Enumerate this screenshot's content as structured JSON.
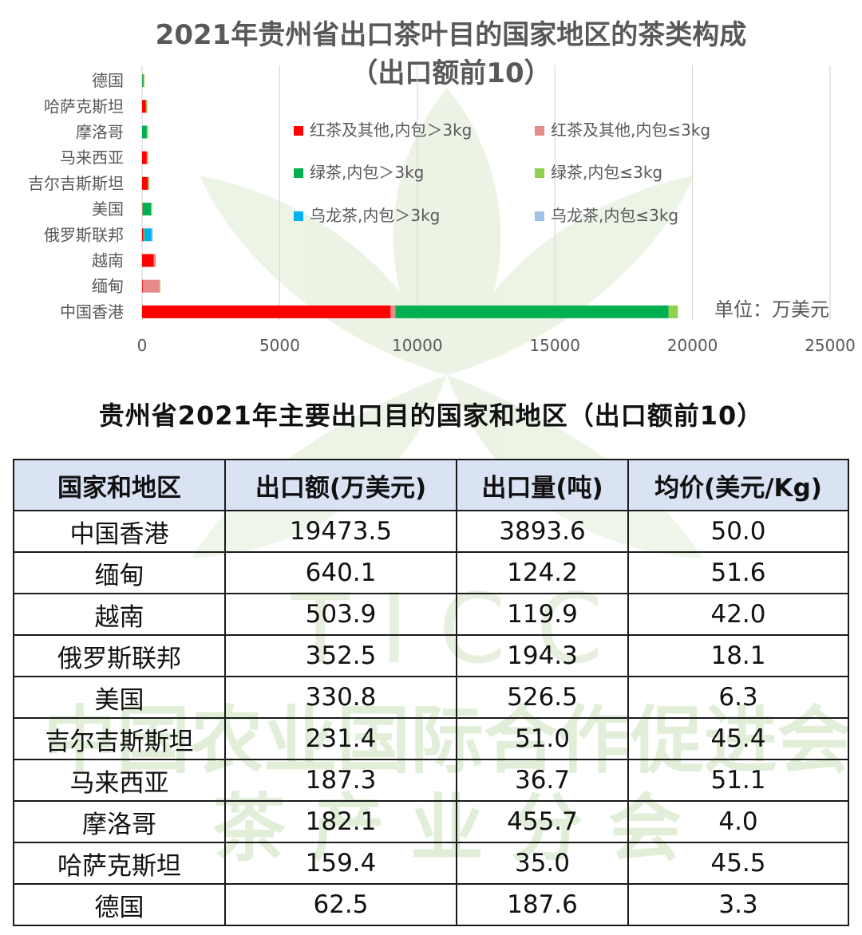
{
  "chart_data": {
    "type": "bar",
    "orientation": "horizontal",
    "stacked": true,
    "title": "2021年贵州省出口茶叶目的国家地区的茶类构成",
    "subtitle": "（出口额前10）",
    "unit_label": "单位：万美元",
    "categories": [
      "中国香港",
      "缅甸",
      "越南",
      "俄罗斯联邦",
      "美国",
      "吉尔吉斯斯坦",
      "马来西亚",
      "摩洛哥",
      "哈萨克斯坦",
      "德国"
    ],
    "x_ticks": [
      0,
      5000,
      10000,
      15000,
      20000,
      25000
    ],
    "xlim": [
      0,
      25000
    ],
    "grid": true,
    "legend_position": "top-right",
    "series": [
      {
        "name": "红茶及其他,内包＞3kg",
        "color": "#ff0000",
        "values": [
          9030,
          20,
          420,
          30,
          0,
          210,
          170,
          0,
          140,
          0
        ]
      },
      {
        "name": "红茶及其他,内包≤3kg",
        "color": "#e88a8a",
        "values": [
          180,
          600,
          80,
          5,
          20,
          15,
          10,
          0,
          10,
          5
        ]
      },
      {
        "name": "绿茶,内包＞3kg",
        "color": "#00b050",
        "values": [
          9920,
          0,
          0,
          40,
          300,
          0,
          0,
          170,
          0,
          40
        ]
      },
      {
        "name": "绿茶,内包≤3kg",
        "color": "#92d050",
        "values": [
          340,
          20,
          0,
          20,
          10,
          5,
          5,
          10,
          5,
          15
        ]
      },
      {
        "name": "乌龙茶,内包＞3kg",
        "color": "#00b0f0",
        "values": [
          0,
          0,
          0,
          250,
          0,
          0,
          0,
          0,
          0,
          0
        ]
      },
      {
        "name": "乌龙茶,内包≤3kg",
        "color": "#9dc3e6",
        "values": [
          0,
          0,
          0,
          5,
          0,
          0,
          0,
          0,
          0,
          0
        ]
      }
    ]
  },
  "table": {
    "title": "贵州省2021年主要出口目的国家和地区（出口额前10）",
    "headers": [
      "国家和地区",
      "出口额(万美元)",
      "出口量(吨)",
      "均价(美元/Kg)"
    ],
    "rows": [
      [
        "中国香港",
        "19473.5",
        "3893.6",
        "50.0"
      ],
      [
        "缅甸",
        "640.1",
        "124.2",
        "51.6"
      ],
      [
        "越南",
        "503.9",
        "119.9",
        "42.0"
      ],
      [
        "俄罗斯联邦",
        "352.5",
        "194.3",
        "18.1"
      ],
      [
        "美国",
        "330.8",
        "526.5",
        "6.3"
      ],
      [
        "吉尔吉斯斯坦",
        "231.4",
        "51.0",
        "45.4"
      ],
      [
        "马来西亚",
        "187.3",
        "36.7",
        "51.1"
      ],
      [
        "摩洛哥",
        "182.1",
        "455.7",
        "4.0"
      ],
      [
        "哈萨克斯坦",
        "159.4",
        "35.0",
        "45.5"
      ],
      [
        "德国",
        "62.5",
        "187.6",
        "3.3"
      ]
    ]
  },
  "watermark": {
    "line1": "T  I  C  C",
    "line2": "中国农业国际合作促进会",
    "line3": "茶   产   业   分   会",
    "color": "#dcebd2"
  }
}
